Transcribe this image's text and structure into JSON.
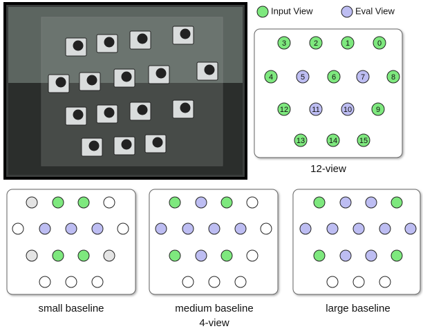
{
  "legend": {
    "input": "Input View",
    "eval": "Eval View"
  },
  "twelve_view": {
    "nodes": [
      "3",
      "2",
      "1",
      "0",
      "4",
      "5",
      "6",
      "7",
      "8",
      "12",
      "11",
      "10",
      "9",
      "13",
      "14",
      "15"
    ],
    "caption": "12-view"
  },
  "four_view": {
    "panels": [
      "small baseline",
      "medium baseline",
      "large baseline"
    ],
    "caption": "4-view"
  }
}
